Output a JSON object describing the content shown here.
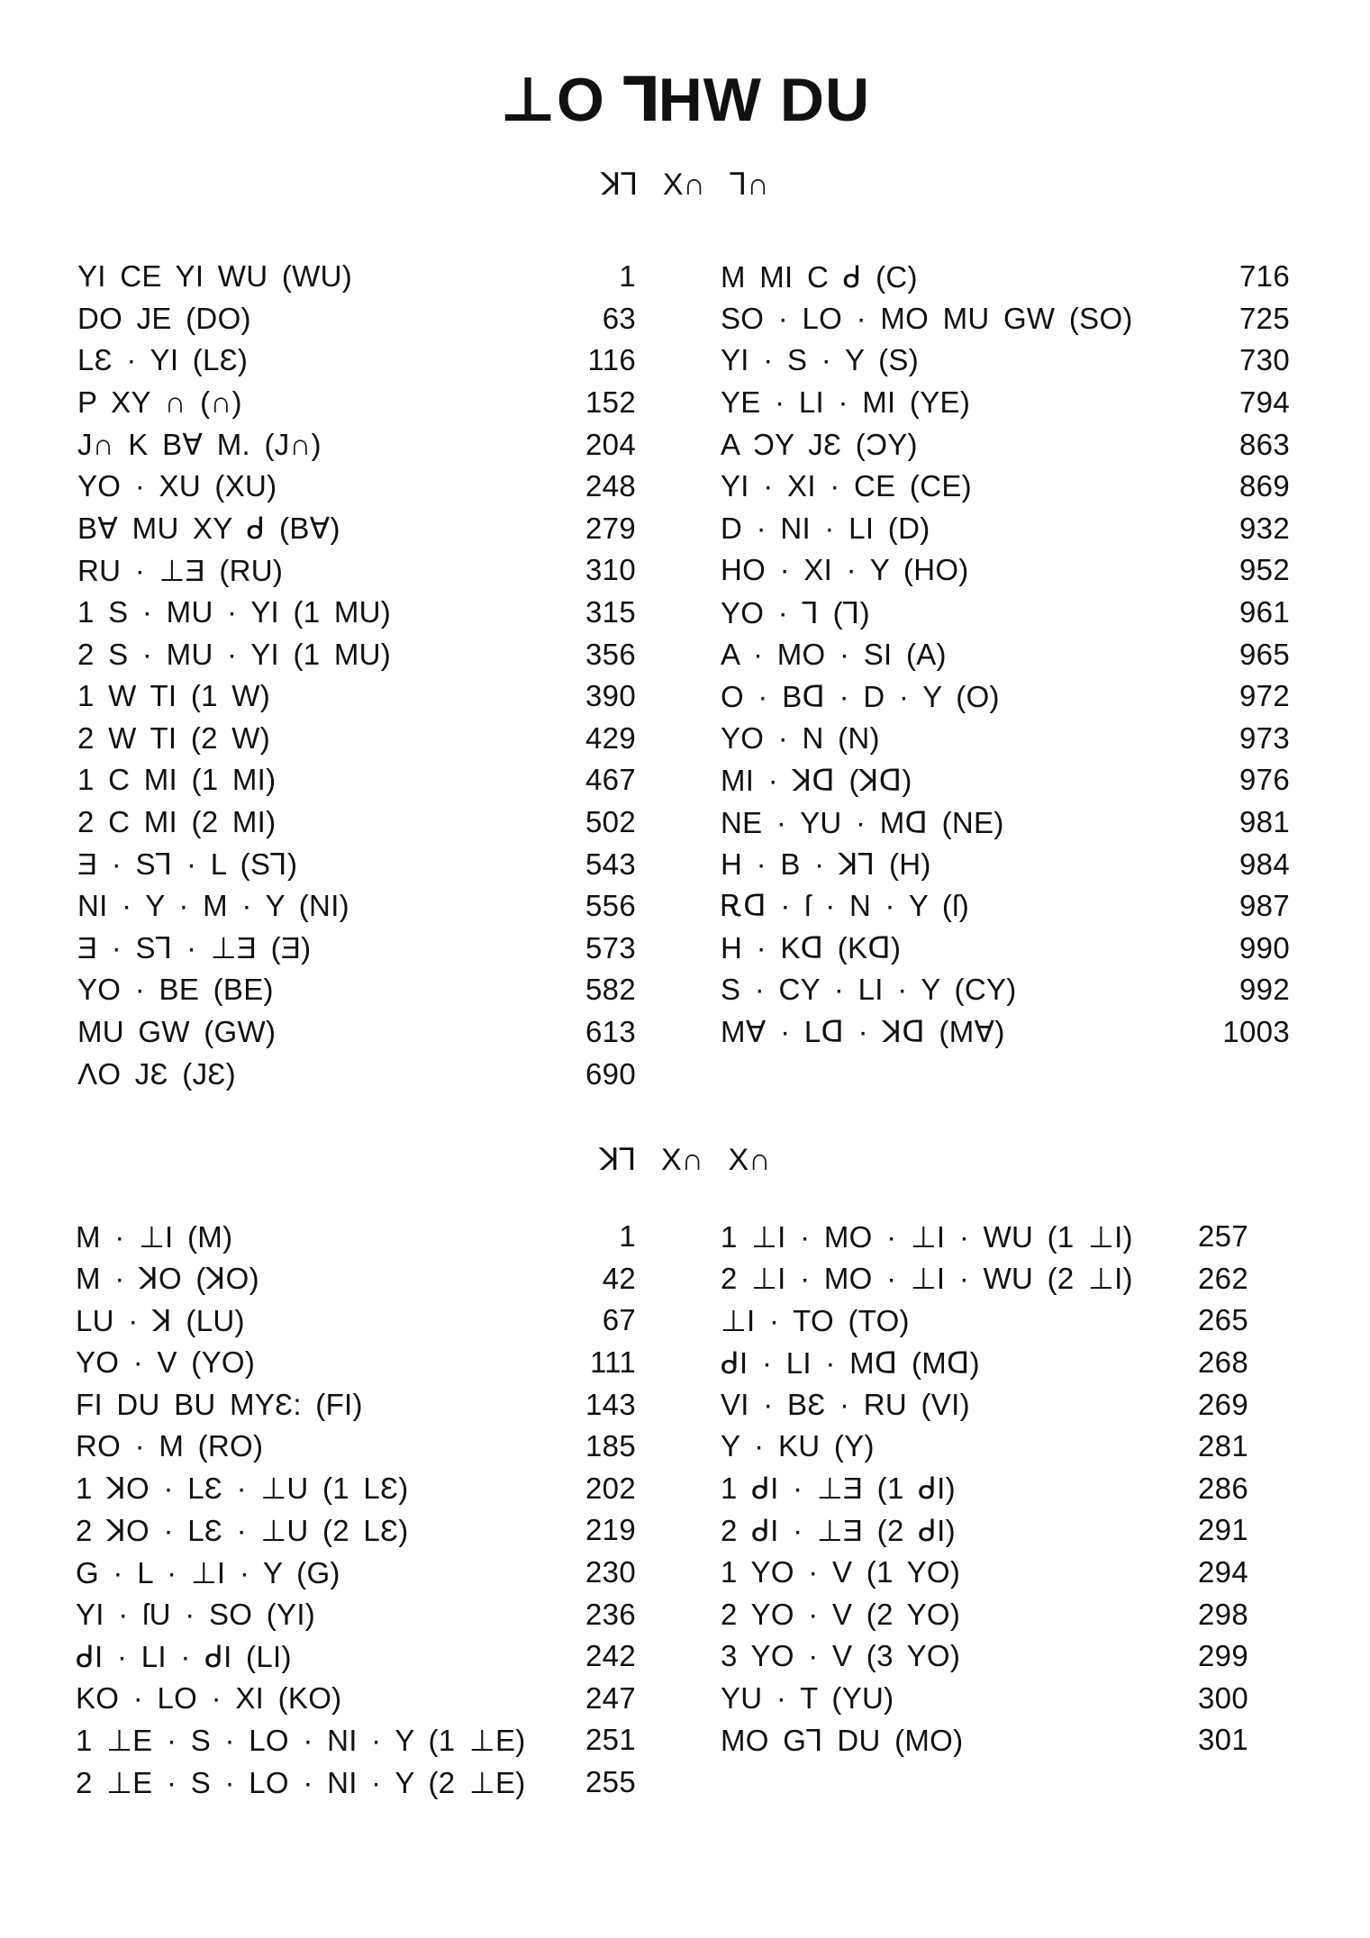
{
  "title": "⊥O ⅂HW DU",
  "sections": [
    {
      "heading": "ꓘ⅂ X∩ ⅂∩",
      "left": [
        [
          "YI CE YI WU (WU)",
          "1"
        ],
        [
          "DO JE (DO)",
          "63"
        ],
        [
          "LƐ · YI (LƐ)",
          "116"
        ],
        [
          "P XY ∩ (∩)",
          "152"
        ],
        [
          "J∩ K B∀ M. (J∩)",
          "204"
        ],
        [
          "YO · XU (XU)",
          "248"
        ],
        [
          "B∀ MU XY ᑯ (B∀)",
          "279"
        ],
        [
          "RU · ⊥Ǝ (RU)",
          "310"
        ],
        [
          "1 S · MU · YI (1 MU)",
          "315"
        ],
        [
          "2 S · MU · YI (1 MU)",
          "356"
        ],
        [
          "1 W TI (1 W)",
          "390"
        ],
        [
          "2 W TI (2 W)",
          "429"
        ],
        [
          "1 C MI (1 MI)",
          "467"
        ],
        [
          "2 C MI (2 MI)",
          "502"
        ],
        [
          "Ǝ · S⅂ · L (S⅂)",
          "543"
        ],
        [
          "NI · Y · M · Y (NI)",
          "556"
        ],
        [
          "Ǝ · S⅂ · ⊥Ǝ (Ǝ)",
          "573"
        ],
        [
          "YO · BE (BE)",
          "582"
        ],
        [
          "MU GW (GW)",
          "613"
        ],
        [
          "ΛO JƐ (JƐ)",
          "690"
        ]
      ],
      "right": [
        [
          "M MI C ᑯ (C)",
          "716"
        ],
        [
          "SO · LO · MO MU GW (SO)",
          "725"
        ],
        [
          "YI · S · Y (S)",
          "730"
        ],
        [
          "YE · LI · MI (YE)",
          "794"
        ],
        [
          "A ƆY JƐ (ƆY)",
          "863"
        ],
        [
          "YI · XI · CE (CE)",
          "869"
        ],
        [
          "D · NI · LI (D)",
          "932"
        ],
        [
          "HO · XI · Y (HO)",
          "952"
        ],
        [
          "YO · ⅂ (⅂)",
          "961"
        ],
        [
          "A · MO · SI (A)",
          "965"
        ],
        [
          "O · Bᗡ · D · Y (O)",
          "972"
        ],
        [
          "YO · N (N)",
          "973"
        ],
        [
          "MI · ꓘᗡ (ꓘᗡ)",
          "976"
        ],
        [
          "NE · YU · Mᗡ (NE)",
          "981"
        ],
        [
          "H · B · ꓘ⅂ (H)",
          "984"
        ],
        [
          "Ꭱᗡ · ſ · N · Y (ſ)",
          "987"
        ],
        [
          "H · Kᗡ (Kᗡ)",
          "990"
        ],
        [
          "S · CY · LI · Y (CY)",
          "992"
        ],
        [
          "M∀ · Lᗡ · ꓘᗡ (M∀)",
          "1003"
        ]
      ]
    },
    {
      "heading": "ꓘ⅂ X∩ X∩",
      "left": [
        [
          "M · ⊥I (M)",
          "1"
        ],
        [
          "M · ꓘO (ꓘO)",
          "42"
        ],
        [
          "LU · ꓘ (LU)",
          "67"
        ],
        [
          "YO · V (YO)",
          "111"
        ],
        [
          "FI DU BU MYƐ: (FI)",
          "143"
        ],
        [
          "RO · M (RO)",
          "185"
        ],
        [
          "1 ꓘO · LƐ · ⊥U (1 LƐ)",
          "202"
        ],
        [
          "2 ꓘO · LƐ · ⊥U (2 LƐ)",
          "219"
        ],
        [
          "G · L · ⊥I · Y (G)",
          "230"
        ],
        [
          "YI · ſU · SO (YI)",
          "236"
        ],
        [
          "ᑯI · LI · ᑯI (LI)",
          "242"
        ],
        [
          "KO · LO · XI (KO)",
          "247"
        ],
        [
          "1 ⊥E · S · LO · NI · Y (1 ⊥E)",
          "251"
        ],
        [
          "2 ⊥E · S · LO · NI · Y (2 ⊥E)",
          "255"
        ]
      ],
      "right": [
        [
          "1 ⊥I · MO · ⊥I · WU (1 ⊥I)",
          "257"
        ],
        [
          "2 ⊥I · MO · ⊥I · WU (2 ⊥I)",
          "262"
        ],
        [
          "⊥I · TO (TO)",
          "265"
        ],
        [
          "ᑯI · LI · Mᗡ (Mᗡ)",
          "268"
        ],
        [
          "VI · BƐ · RU (VI)",
          "269"
        ],
        [
          "Y · KU (Y)",
          "281"
        ],
        [
          "1 ᑯI · ⊥Ǝ (1 ᑯI)",
          "286"
        ],
        [
          "2 ᑯI · ⊥Ǝ (2 ᑯI)",
          "291"
        ],
        [
          "1 YO · V (1 YO)",
          "294"
        ],
        [
          "2 YO · V (2 YO)",
          "298"
        ],
        [
          "3 YO · V (3 YO)",
          "299"
        ],
        [
          "YU · T (YU)",
          "300"
        ],
        [
          "MO G⅂ DU (MO)",
          "301"
        ]
      ]
    }
  ]
}
